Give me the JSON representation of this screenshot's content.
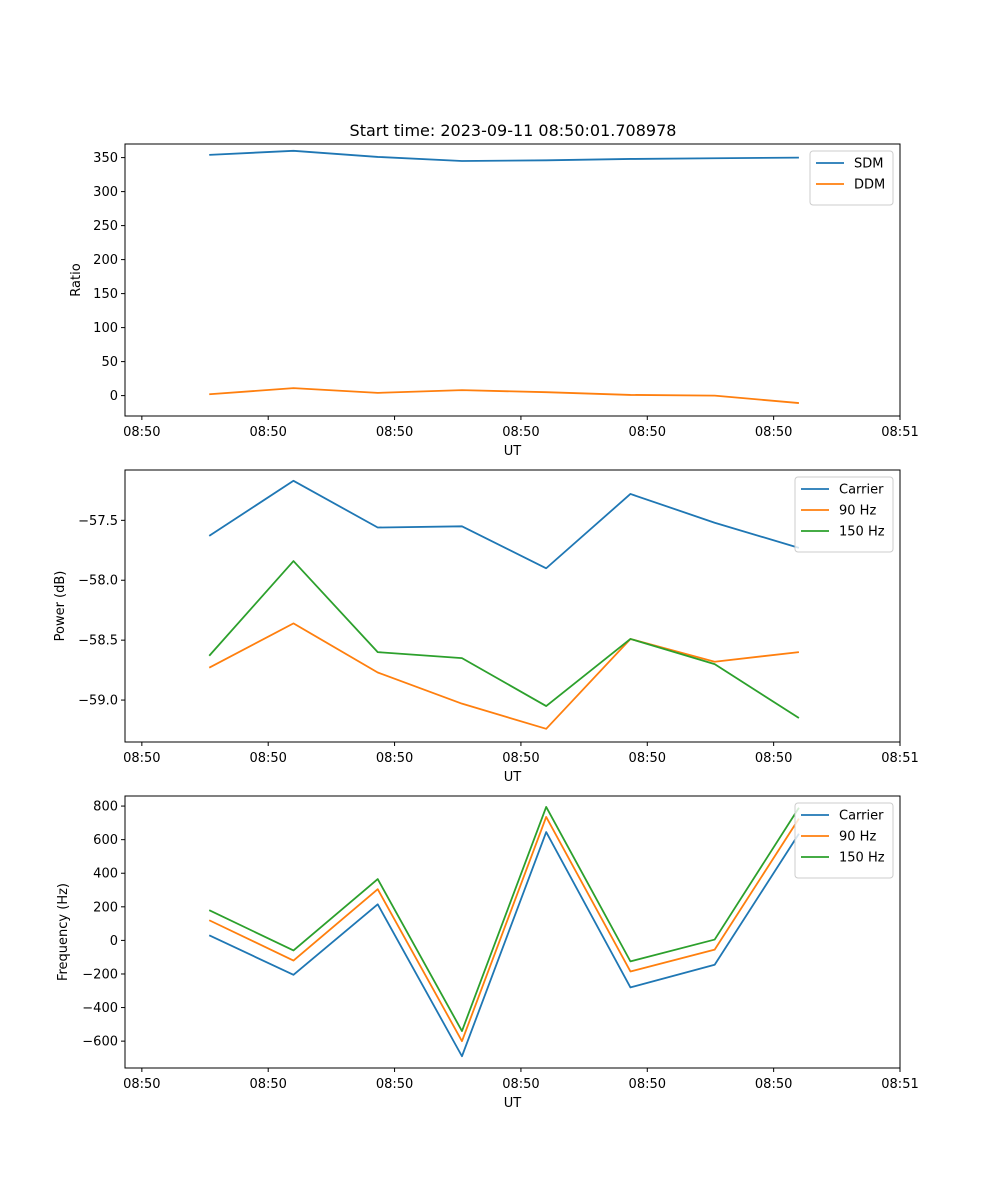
{
  "figure_title": "Start time: 2023-09-11 08:50:01.708978",
  "chart_data": [
    {
      "type": "line",
      "title": "Start time: 2023-09-11 08:50:01.708978",
      "xlabel": "UT",
      "ylabel": "Ratio",
      "x": [
        1,
        2,
        3,
        4,
        5,
        6,
        7,
        8
      ],
      "xlim": [
        0,
        9.2
      ],
      "x_ticks": [
        {
          "x": 0.2,
          "label": "08:50"
        },
        {
          "x": 1.7,
          "label": "08:50"
        },
        {
          "x": 3.2,
          "label": "08:50"
        },
        {
          "x": 4.7,
          "label": "08:50"
        },
        {
          "x": 6.2,
          "label": "08:50"
        },
        {
          "x": 7.7,
          "label": "08:50"
        },
        {
          "x": 9.2,
          "label": "08:51"
        }
      ],
      "ylim": [
        -30,
        370
      ],
      "y_ticks": [
        0,
        50,
        100,
        150,
        200,
        250,
        300,
        350
      ],
      "legend": "top-right",
      "series": [
        {
          "name": "SDM",
          "color": "#1f77b4",
          "values": [
            354,
            360,
            351,
            345,
            346,
            348,
            349,
            350
          ]
        },
        {
          "name": "DDM",
          "color": "#ff7f0e",
          "values": [
            2,
            11,
            4,
            8,
            5,
            1,
            0,
            -11
          ]
        }
      ]
    },
    {
      "type": "line",
      "title": "",
      "xlabel": "UT",
      "ylabel": "Power (dB)",
      "x": [
        1,
        2,
        3,
        4,
        5,
        6,
        7,
        8
      ],
      "xlim": [
        0,
        9.2
      ],
      "x_ticks": [
        {
          "x": 0.2,
          "label": "08:50"
        },
        {
          "x": 1.7,
          "label": "08:50"
        },
        {
          "x": 3.2,
          "label": "08:50"
        },
        {
          "x": 4.7,
          "label": "08:50"
        },
        {
          "x": 6.2,
          "label": "08:50"
        },
        {
          "x": 7.7,
          "label": "08:50"
        },
        {
          "x": 9.2,
          "label": "08:51"
        }
      ],
      "ylim": [
        -59.35,
        -57.08
      ],
      "y_ticks": [
        -59.0,
        -58.5,
        -58.0,
        -57.5
      ],
      "y_tick_labels": [
        "−59.0",
        "−58.5",
        "−58.0",
        "−57.5"
      ],
      "legend": "top-right",
      "series": [
        {
          "name": "Carrier",
          "color": "#1f77b4",
          "values": [
            -57.63,
            -57.17,
            -57.56,
            -57.55,
            -57.9,
            -57.28,
            -57.52,
            -57.73
          ]
        },
        {
          "name": "90 Hz",
          "color": "#ff7f0e",
          "values": [
            -58.73,
            -58.36,
            -58.77,
            -59.03,
            -59.24,
            -58.49,
            -58.68,
            -58.6
          ]
        },
        {
          "name": "150 Hz",
          "color": "#2ca02c",
          "values": [
            -58.63,
            -57.84,
            -58.6,
            -58.65,
            -59.05,
            -58.49,
            -58.7,
            -59.15
          ]
        }
      ]
    },
    {
      "type": "line",
      "title": "",
      "xlabel": "UT",
      "ylabel": "Frequency (Hz)",
      "x": [
        1,
        2,
        3,
        4,
        5,
        6,
        7,
        8
      ],
      "xlim": [
        0,
        9.2
      ],
      "x_ticks": [
        {
          "x": 0.2,
          "label": "08:50"
        },
        {
          "x": 1.7,
          "label": "08:50"
        },
        {
          "x": 3.2,
          "label": "08:50"
        },
        {
          "x": 4.7,
          "label": "08:50"
        },
        {
          "x": 6.2,
          "label": "08:50"
        },
        {
          "x": 7.7,
          "label": "08:50"
        },
        {
          "x": 9.2,
          "label": "08:51"
        }
      ],
      "ylim": [
        -760,
        860
      ],
      "y_ticks": [
        -600,
        -400,
        -200,
        0,
        200,
        400,
        600,
        800
      ],
      "y_tick_labels": [
        "−600",
        "−400",
        "−200",
        "0",
        "200",
        "400",
        "600",
        "800"
      ],
      "legend": "top-right",
      "series": [
        {
          "name": "Carrier",
          "color": "#1f77b4",
          "values": [
            30,
            -205,
            215,
            -690,
            645,
            -280,
            -145,
            635
          ]
        },
        {
          "name": "90 Hz",
          "color": "#ff7f0e",
          "values": [
            120,
            -120,
            305,
            -600,
            735,
            -185,
            -55,
            725
          ]
        },
        {
          "name": "150 Hz",
          "color": "#2ca02c",
          "values": [
            180,
            -60,
            365,
            -540,
            795,
            -125,
            5,
            790
          ]
        }
      ]
    }
  ]
}
